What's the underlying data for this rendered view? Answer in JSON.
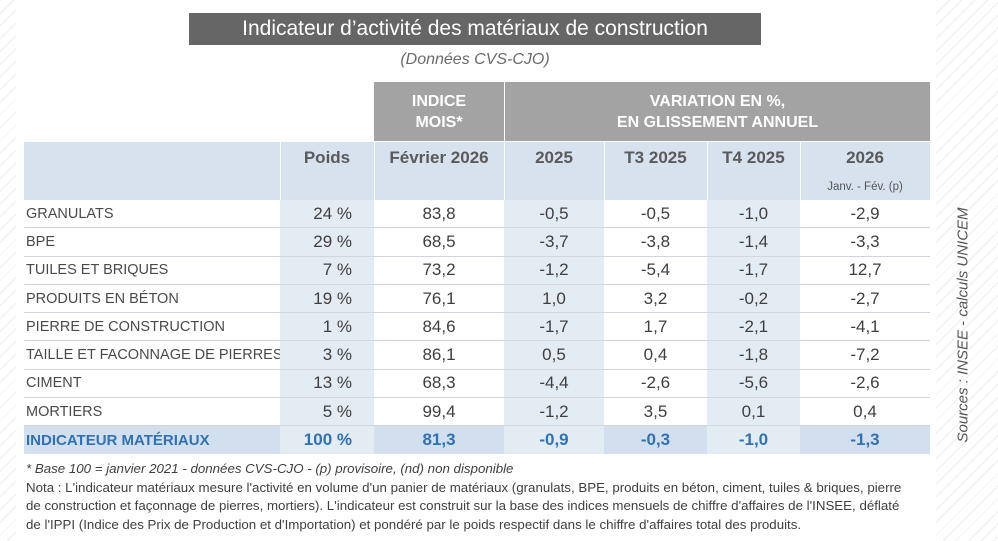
{
  "title": "Indicateur d’activité des matériaux de construction",
  "subtitle": "(Données CVS-CJO)",
  "header": {
    "indice_line1": "INDICE",
    "indice_line2": "MOIS*",
    "variation_line1": "VARIATION EN %,",
    "variation_line2": "EN GLISSEMENT ANNUEL"
  },
  "columns": [
    "",
    "Poids",
    "Février 2026",
    "2025",
    "T3 2025",
    "T4 2025",
    "2026"
  ],
  "subheader_2026": "Janv. - Fév. (p)",
  "rows": [
    {
      "label": "GRANULATS",
      "poids": "24 %",
      "indice": "83,8",
      "v2025": "-0,5",
      "t3": "-0,5",
      "t4": "-1,0",
      "v2026": "-2,9"
    },
    {
      "label": "BPE",
      "poids": "29 %",
      "indice": "68,5",
      "v2025": "-3,7",
      "t3": "-3,8",
      "t4": "-1,4",
      "v2026": "-3,3"
    },
    {
      "label": "TUILES ET BRIQUES",
      "poids": "7 %",
      "indice": "73,2",
      "v2025": "-1,2",
      "t3": "-5,4",
      "t4": "-1,7",
      "v2026": "12,7"
    },
    {
      "label": "PRODUITS EN BÉTON",
      "poids": "19 %",
      "indice": "76,1",
      "v2025": "1,0",
      "t3": "3,2",
      "t4": "-0,2",
      "v2026": "-2,7"
    },
    {
      "label": "PIERRE DE CONSTRUCTION",
      "poids": "1 %",
      "indice": "84,6",
      "v2025": "-1,7",
      "t3": "1,7",
      "t4": "-2,1",
      "v2026": "-4,1"
    },
    {
      "label": "TAILLE ET FACONNAGE DE PIERRES",
      "poids": "3 %",
      "indice": "86,1",
      "v2025": "0,5",
      "t3": "0,4",
      "t4": "-1,8",
      "v2026": "-7,2"
    },
    {
      "label": "CIMENT",
      "poids": "13 %",
      "indice": "68,3",
      "v2025": "-4,4",
      "t3": "-2,6",
      "t4": "-5,6",
      "v2026": "-2,6"
    },
    {
      "label": "MORTIERS",
      "poids": "5 %",
      "indice": "99,4",
      "v2025": "-1,2",
      "t3": "3,5",
      "t4": "0,1",
      "v2026": "0,4"
    }
  ],
  "total": {
    "label": "INDICATEUR MATÉRIAUX",
    "poids": "100 %",
    "indice": "81,3",
    "v2025": "-0,9",
    "t3": "-0,3",
    "t4": "-1,0",
    "v2026": "-1,3"
  },
  "sources": "Sources : INSEE - calculs UNICEM",
  "footnotes": {
    "base": "* Base 100 = janvier 2021 - données CVS-CJO - (p) provisoire, (nd) non disponible",
    "nota_1": "Nota :  L'indicateur matériaux mesure l'activité en volume d'un panier de matériaux (granulats, BPE, produits en béton, ciment, tuiles & briques, pierre",
    "nota_2": "de construction et façonnage de pierres, mortiers). L'indicateur est construit sur la base des indices mensuels de chiffre d'affaires de l'INSEE, déflaté",
    "nota_3": "de l'IPPI (Indice des Prix de Production et d'Importation) et pondéré par le poids respectif dans le chiffre d'affaires total des produits."
  },
  "colors": {
    "title_bg": "#666666",
    "header_gray": "#a3a3a3",
    "header_blue": "#d7e2ee",
    "total_text": "#2e72b8"
  }
}
